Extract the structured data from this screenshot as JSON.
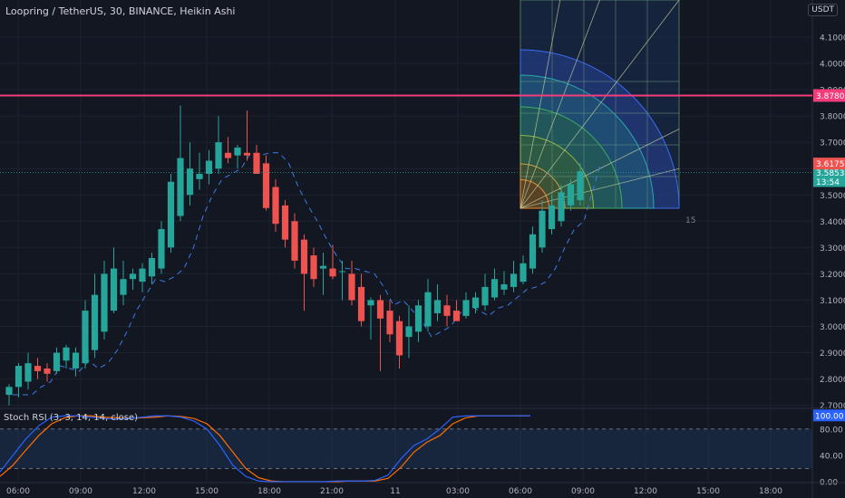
{
  "header": {
    "title": "Loopring / TetherUS, 30, BINANCE, Heikin Ashi",
    "currency": "USDT"
  },
  "chart_data": {
    "type": "candlestick",
    "title": "Loopring / TetherUS, 30, BINANCE, Heikin Ashi",
    "ylim": [
      2.68,
      4.2
    ],
    "y_ticks": [
      "4.1000",
      "4.0000",
      "3.9000",
      "3.8000",
      "3.7000",
      "3.6000",
      "3.5000",
      "3.4000",
      "3.3000",
      "3.2000",
      "3.1000",
      "3.0000",
      "2.9000",
      "2.8000",
      "2.7000"
    ],
    "x_ticks": [
      "06:00",
      "09:00",
      "12:00",
      "15:00",
      "18:00",
      "21:00",
      "11",
      "03:00",
      "06:00",
      "09:00",
      "12:00",
      "15:00",
      "18:00"
    ],
    "candles": [
      {
        "o": 2.74,
        "h": 2.78,
        "l": 2.7,
        "c": 2.77
      },
      {
        "o": 2.77,
        "h": 2.86,
        "l": 2.73,
        "c": 2.85
      },
      {
        "o": 2.79,
        "h": 2.9,
        "l": 2.76,
        "c": 2.86
      },
      {
        "o": 2.85,
        "h": 2.88,
        "l": 2.8,
        "c": 2.83
      },
      {
        "o": 2.84,
        "h": 2.86,
        "l": 2.79,
        "c": 2.82
      },
      {
        "o": 2.83,
        "h": 2.92,
        "l": 2.82,
        "c": 2.9
      },
      {
        "o": 2.87,
        "h": 2.93,
        "l": 2.84,
        "c": 2.92
      },
      {
        "o": 2.84,
        "h": 2.92,
        "l": 2.81,
        "c": 2.9
      },
      {
        "o": 2.86,
        "h": 3.1,
        "l": 2.84,
        "c": 3.06
      },
      {
        "o": 2.91,
        "h": 3.2,
        "l": 2.88,
        "c": 3.12
      },
      {
        "o": 2.98,
        "h": 3.25,
        "l": 2.95,
        "c": 3.2
      },
      {
        "o": 3.06,
        "h": 3.3,
        "l": 3.05,
        "c": 3.22
      },
      {
        "o": 3.12,
        "h": 3.25,
        "l": 3.08,
        "c": 3.18
      },
      {
        "o": 3.18,
        "h": 3.22,
        "l": 3.14,
        "c": 3.2
      },
      {
        "o": 3.17,
        "h": 3.24,
        "l": 3.13,
        "c": 3.22
      },
      {
        "o": 3.19,
        "h": 3.28,
        "l": 3.16,
        "c": 3.26
      },
      {
        "o": 3.22,
        "h": 3.4,
        "l": 3.2,
        "c": 3.37
      },
      {
        "o": 3.3,
        "h": 3.58,
        "l": 3.28,
        "c": 3.55
      },
      {
        "o": 3.42,
        "h": 3.84,
        "l": 3.4,
        "c": 3.64
      },
      {
        "o": 3.5,
        "h": 3.7,
        "l": 3.46,
        "c": 3.6
      },
      {
        "o": 3.56,
        "h": 3.66,
        "l": 3.52,
        "c": 3.58
      },
      {
        "o": 3.58,
        "h": 3.67,
        "l": 3.54,
        "c": 3.63
      },
      {
        "o": 3.6,
        "h": 3.8,
        "l": 3.58,
        "c": 3.7
      },
      {
        "o": 3.66,
        "h": 3.72,
        "l": 3.62,
        "c": 3.64
      },
      {
        "o": 3.65,
        "h": 3.69,
        "l": 3.6,
        "c": 3.68
      },
      {
        "o": 3.66,
        "h": 3.82,
        "l": 3.63,
        "c": 3.65
      },
      {
        "o": 3.66,
        "h": 3.69,
        "l": 3.58,
        "c": 3.58
      },
      {
        "o": 3.62,
        "h": 3.65,
        "l": 3.44,
        "c": 3.45
      },
      {
        "o": 3.53,
        "h": 3.56,
        "l": 3.36,
        "c": 3.39
      },
      {
        "o": 3.46,
        "h": 3.48,
        "l": 3.3,
        "c": 3.33
      },
      {
        "o": 3.4,
        "h": 3.43,
        "l": 3.22,
        "c": 3.25
      },
      {
        "o": 3.33,
        "h": 3.35,
        "l": 3.06,
        "c": 3.2
      },
      {
        "o": 3.27,
        "h": 3.3,
        "l": 3.15,
        "c": 3.18
      },
      {
        "o": 3.22,
        "h": 3.28,
        "l": 3.12,
        "c": 3.23
      },
      {
        "o": 3.22,
        "h": 3.31,
        "l": 3.18,
        "c": 3.19
      },
      {
        "o": 3.21,
        "h": 3.25,
        "l": 3.1,
        "c": 3.21
      },
      {
        "o": 3.2,
        "h": 3.25,
        "l": 3.08,
        "c": 3.1
      },
      {
        "o": 3.15,
        "h": 3.2,
        "l": 3.0,
        "c": 3.02
      },
      {
        "o": 3.08,
        "h": 3.11,
        "l": 2.95,
        "c": 3.1
      },
      {
        "o": 3.1,
        "h": 3.12,
        "l": 2.83,
        "c": 3.03
      },
      {
        "o": 3.06,
        "h": 3.1,
        "l": 2.94,
        "c": 2.97
      },
      {
        "o": 3.02,
        "h": 3.04,
        "l": 2.84,
        "c": 2.89
      },
      {
        "o": 2.96,
        "h": 3.08,
        "l": 2.88,
        "c": 3.0
      },
      {
        "o": 2.98,
        "h": 3.1,
        "l": 2.94,
        "c": 3.08
      },
      {
        "o": 3.0,
        "h": 3.18,
        "l": 2.98,
        "c": 3.13
      },
      {
        "o": 3.05,
        "h": 3.16,
        "l": 3.02,
        "c": 3.1
      },
      {
        "o": 3.08,
        "h": 3.12,
        "l": 3.0,
        "c": 3.04
      },
      {
        "o": 3.06,
        "h": 3.1,
        "l": 3.03,
        "c": 3.02
      },
      {
        "o": 3.04,
        "h": 3.13,
        "l": 3.03,
        "c": 3.1
      },
      {
        "o": 3.07,
        "h": 3.13,
        "l": 3.05,
        "c": 3.11
      },
      {
        "o": 3.08,
        "h": 3.2,
        "l": 3.06,
        "c": 3.15
      },
      {
        "o": 3.11,
        "h": 3.22,
        "l": 3.1,
        "c": 3.18
      },
      {
        "o": 3.14,
        "h": 3.21,
        "l": 3.12,
        "c": 3.16
      },
      {
        "o": 3.15,
        "h": 3.25,
        "l": 3.13,
        "c": 3.2
      },
      {
        "o": 3.17,
        "h": 3.27,
        "l": 3.16,
        "c": 3.24
      },
      {
        "o": 3.22,
        "h": 3.38,
        "l": 3.2,
        "c": 3.35
      },
      {
        "o": 3.3,
        "h": 3.48,
        "l": 3.28,
        "c": 3.44
      },
      {
        "o": 3.37,
        "h": 3.5,
        "l": 3.35,
        "c": 3.46
      },
      {
        "o": 3.4,
        "h": 3.54,
        "l": 3.38,
        "c": 3.51
      },
      {
        "o": 3.46,
        "h": 3.56,
        "l": 3.44,
        "c": 3.54
      },
      {
        "o": 3.48,
        "h": 3.62,
        "l": 3.46,
        "c": 3.59
      }
    ],
    "up_color": "#26a69a",
    "down_color": "#ef5350",
    "horizontal_line": {
      "value": 3.878,
      "label": "3.8780",
      "color": "#f23d7a"
    },
    "last_price": {
      "value": 3.5853,
      "label": "3.5853",
      "countdown": "13:54",
      "color": "#26a69a"
    },
    "prev_price": {
      "value": 3.6175,
      "label": "3.6175",
      "color": "#ef5350"
    },
    "gann_label": "15",
    "sub_panel": {
      "title": "Stoch RSI (3, 3, 14, 14, close)",
      "ylim": [
        0,
        110
      ],
      "y_ticks": [
        "80.00",
        "40.00",
        "0.00"
      ],
      "band": [
        20,
        80
      ],
      "value_label": "100.00",
      "k_color": "#2962ff",
      "d_color": "#ff6d00",
      "k": [
        15,
        40,
        65,
        85,
        98,
        100,
        100,
        98,
        96,
        95,
        96,
        98,
        100,
        100,
        98,
        92,
        80,
        55,
        25,
        8,
        1,
        0,
        0,
        0,
        0,
        0,
        1,
        1,
        1,
        2,
        10,
        35,
        55,
        65,
        80,
        98,
        100,
        100,
        100,
        100,
        100,
        100
      ],
      "d": [
        8,
        25,
        48,
        70,
        88,
        97,
        100,
        100,
        98,
        97,
        96,
        97,
        98,
        100,
        99,
        96,
        88,
        70,
        45,
        20,
        6,
        1,
        0,
        0,
        0,
        0,
        0,
        1,
        1,
        1,
        5,
        22,
        45,
        60,
        70,
        88,
        97,
        100,
        100,
        100,
        100,
        100
      ]
    }
  }
}
